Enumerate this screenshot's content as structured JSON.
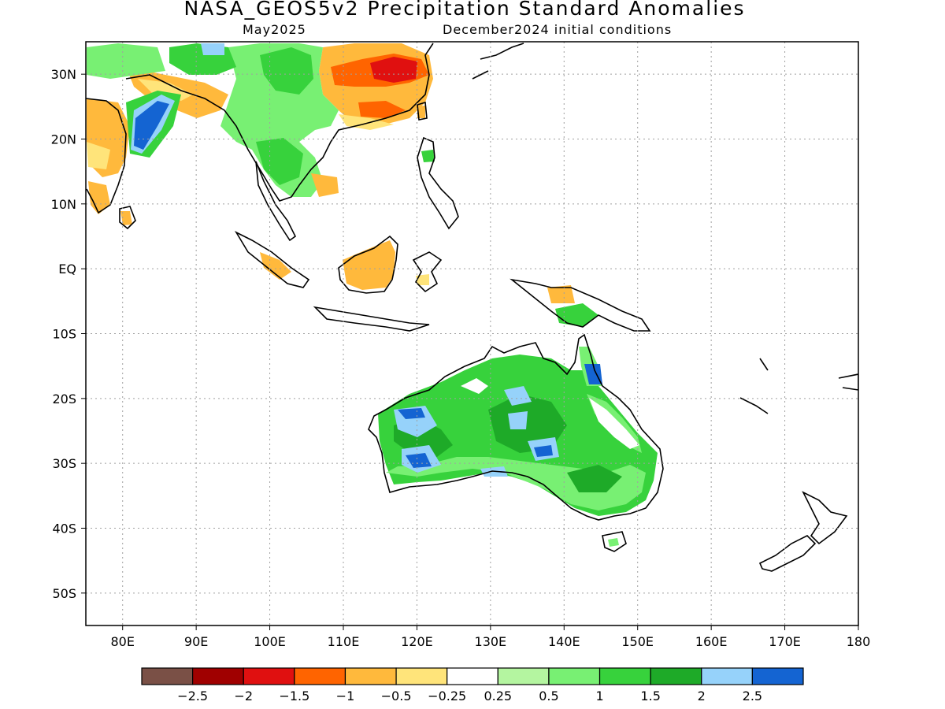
{
  "header": {
    "title": "NASA_GEOS5v2 Precipitation Standard Anomalies",
    "month": "May2025",
    "init": "December2024 initial conditions"
  },
  "axes": {
    "lon_ticks": [
      "80E",
      "90E",
      "100E",
      "110E",
      "120E",
      "130E",
      "140E",
      "150E",
      "160E",
      "170E",
      "180"
    ],
    "lat_ticks": [
      "30N",
      "20N",
      "10N",
      "EQ",
      "10S",
      "20S",
      "30S",
      "40S",
      "50S"
    ],
    "lon_range": [
      75,
      180
    ],
    "lat_range": [
      -55,
      35
    ]
  },
  "legend": {
    "labels": [
      "−2.5",
      "−2",
      "−1.5",
      "−1",
      "−0.5",
      "−0.25",
      "0.25",
      "0.5",
      "1",
      "1.5",
      "2",
      "2.5"
    ],
    "colors": [
      "#7a5046",
      "#a00000",
      "#e01010",
      "#ff6400",
      "#ffb93c",
      "#ffe47a",
      "#ffffff",
      "#b4f5a0",
      "#78f073",
      "#37d23c",
      "#1eaa28",
      "#96d2fa",
      "#1464d2"
    ]
  }
}
